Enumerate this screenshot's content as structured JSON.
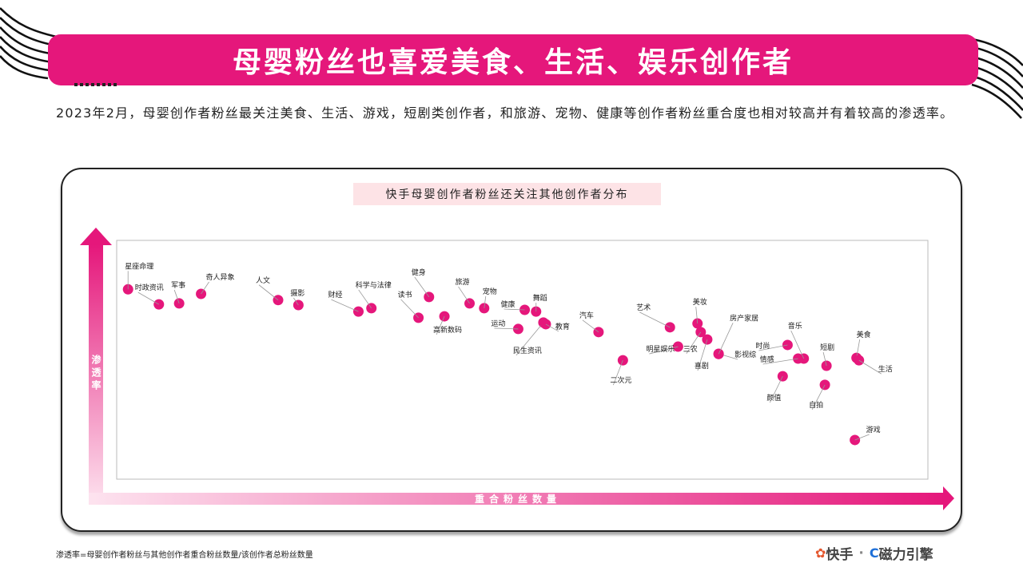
{
  "page": {
    "title": "母婴粉丝也喜爱美食、生活、娱乐创作者",
    "description": "2023年2月，母婴创作者粉丝最关注美食、生活、游戏，短剧类创作者，和旅游、宠物、健康等创作者粉丝重合度也相对较高并有着较高的渗透率。",
    "footnote": "渗透率=母婴创作者粉丝与其他创作者重合粉丝数量/该创作者总粉丝数量",
    "brand": {
      "kuaishou": "快手",
      "separator": "·",
      "cili": "磁力引擎"
    },
    "colors": {
      "accent": "#e5177b",
      "title_bg": "#e5177b",
      "chart_title_bg": "#fde3e6"
    }
  },
  "chart_data": {
    "type": "scatter",
    "title": "快手母婴创作者粉丝还关注其他创作者分布",
    "xlabel": "重合粉丝数量",
    "ylabel": "渗 透 率",
    "x_axis_ticks": "none",
    "y_axis_ticks": "none",
    "grid": false,
    "point_color": "#e5177b",
    "note": "axes carry no numeric ticks; x = relative overlap-fan count rank (0-100), y = relative penetration (0-100)",
    "points": [
      {
        "label": "星座命理",
        "x": 1.4,
        "y": 79.5
      },
      {
        "label": "时政资讯",
        "x": 5.2,
        "y": 73.2
      },
      {
        "label": "军事",
        "x": 7.7,
        "y": 73.6
      },
      {
        "label": "奇人异象",
        "x": 10.4,
        "y": 77.6
      },
      {
        "label": "人文",
        "x": 19.9,
        "y": 75.0
      },
      {
        "label": "摄影",
        "x": 22.4,
        "y": 72.9
      },
      {
        "label": "财经",
        "x": 29.8,
        "y": 70.2
      },
      {
        "label": "科学与法律",
        "x": 31.4,
        "y": 71.6
      },
      {
        "label": "读书",
        "x": 37.2,
        "y": 67.6
      },
      {
        "label": "健身",
        "x": 38.5,
        "y": 76.3
      },
      {
        "label": "高新数码",
        "x": 40.4,
        "y": 68.2
      },
      {
        "label": "旅游",
        "x": 43.5,
        "y": 73.6
      },
      {
        "label": "宠物",
        "x": 45.3,
        "y": 71.6
      },
      {
        "label": "运动",
        "x": 49.5,
        "y": 62.9
      },
      {
        "label": "健康",
        "x": 50.3,
        "y": 70.9
      },
      {
        "label": "舞蹈",
        "x": 51.7,
        "y": 70.2
      },
      {
        "label": "民生资讯",
        "x": 52.6,
        "y": 65.6
      },
      {
        "label": "教育",
        "x": 52.9,
        "y": 64.9
      },
      {
        "label": "汽车",
        "x": 59.4,
        "y": 61.6
      },
      {
        "label": "二次元",
        "x": 62.4,
        "y": 49.8
      },
      {
        "label": "艺术",
        "x": 68.2,
        "y": 63.6
      },
      {
        "label": "明星娱乐",
        "x": 69.2,
        "y": 55.5
      },
      {
        "label": "美妆",
        "x": 71.6,
        "y": 65.2
      },
      {
        "label": "三农",
        "x": 72.0,
        "y": 61.6
      },
      {
        "label": "喜剧",
        "x": 72.8,
        "y": 58.5
      },
      {
        "label": "影视综",
        "x": 74.2,
        "y": 52.5
      },
      {
        "label": "房产家居",
        "x": 74.2,
        "y": 52.4
      },
      {
        "label": "时尚",
        "x": 82.7,
        "y": 56.2
      },
      {
        "label": "情感",
        "x": 84.0,
        "y": 50.5
      },
      {
        "label": "音乐",
        "x": 84.7,
        "y": 50.5
      },
      {
        "label": "颜值",
        "x": 82.1,
        "y": 43.1
      },
      {
        "label": "短剧",
        "x": 87.5,
        "y": 47.5
      },
      {
        "label": "自拍",
        "x": 87.3,
        "y": 39.5
      },
      {
        "label": "美食",
        "x": 91.2,
        "y": 50.8
      },
      {
        "label": "生活",
        "x": 91.5,
        "y": 49.8
      },
      {
        "label": "游戏",
        "x": 91.0,
        "y": 16.4
      }
    ]
  }
}
